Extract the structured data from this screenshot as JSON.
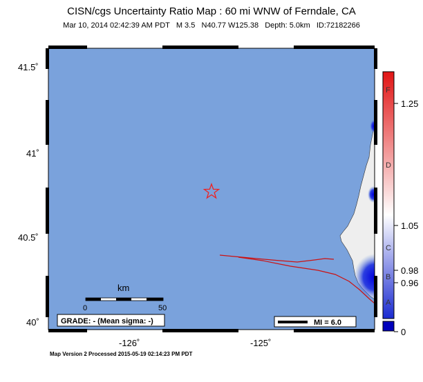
{
  "title": "CISN/cgs Uncertainty Ratio Map : 60 mi WNW of Ferndale, CA",
  "subtitle": "Mar 10, 2014 02:42:39 AM PDT   M 3.5   N40.77 W125.38   Depth: 5.0km   ID:72182266",
  "footer": "Map Version 2 Processed 2015-05-19 02:14:23 PM PDT",
  "map": {
    "lat_labels": [
      "41.5˚",
      "41˚",
      "40.5˚",
      "40˚"
    ],
    "lon_labels": [
      "-126˚",
      "-125˚"
    ],
    "epicenter": {
      "lat": 40.77,
      "lon": -125.38
    },
    "grade_box": "GRADE: - (Mean sigma: -)",
    "scale": {
      "title": "km",
      "min": "0",
      "max": "50"
    },
    "mi_legend": "MI = 6.0",
    "colors": {
      "water": "#7aa2dc",
      "land": "#f0f0f0",
      "fault": "#cc1111",
      "star": "#ee2222"
    }
  },
  "colorbar": {
    "grades": [
      "F",
      "D",
      "C",
      "B",
      "A"
    ],
    "values": [
      "1.25",
      "1.05",
      "0.98",
      "0.96",
      "0"
    ]
  }
}
